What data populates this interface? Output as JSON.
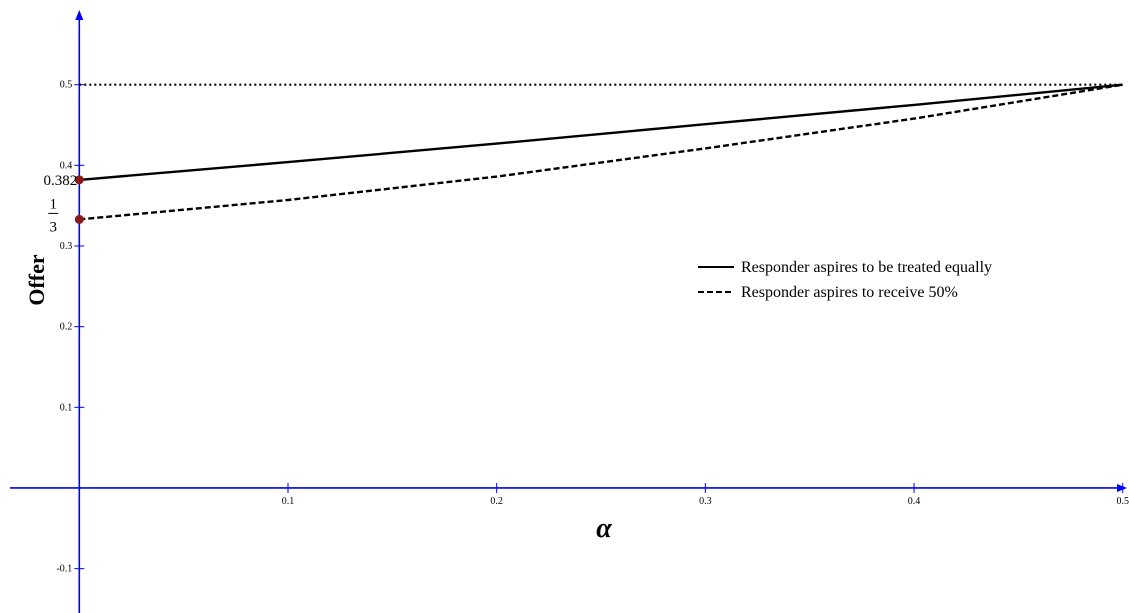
{
  "chart_data": {
    "type": "line",
    "xlabel": "α",
    "ylabel": "Offer",
    "xlim": [
      -0.038,
      0.503
    ],
    "ylim": [
      -0.155,
      0.605
    ],
    "x_ticks": [
      0.1,
      0.2,
      0.3,
      0.4,
      0.5
    ],
    "x_tick_labels": [
      "0.1",
      "0.2",
      "0.3",
      "0.4",
      "0.5"
    ],
    "y_ticks": [
      -0.1,
      0.1,
      0.2,
      0.3,
      0.4,
      0.5
    ],
    "y_tick_labels": [
      "-0.1",
      "0.1",
      "0.2",
      "0.3",
      "0.4",
      "0.5"
    ],
    "grid": false,
    "legend_position": "right",
    "series": [
      {
        "name": "Responder aspires to be treated equally",
        "style": "solid",
        "color": "#000000",
        "x": [
          0,
          0.1,
          0.2,
          0.3,
          0.4,
          0.5
        ],
        "y": [
          0.382,
          0.404,
          0.427,
          0.451,
          0.475,
          0.5
        ]
      },
      {
        "name": "Responder aspires to receive 50%",
        "style": "dashed",
        "color": "#000000",
        "x": [
          0,
          0.1,
          0.2,
          0.3,
          0.4,
          0.5
        ],
        "y": [
          0.333,
          0.357,
          0.386,
          0.421,
          0.458,
          0.5
        ]
      },
      {
        "name": "",
        "style": "dotted",
        "color": "#000000",
        "x": [
          0,
          0.5
        ],
        "y": [
          0.5,
          0.5
        ]
      }
    ],
    "points": [
      {
        "x": 0,
        "y": 0.382,
        "label": "0.382",
        "color": "#8b1a1a"
      },
      {
        "x": 0,
        "y": 0.333,
        "label_num": "1",
        "label_den": "3",
        "color": "#8b1a1a"
      }
    ],
    "axis_color": "#0000ff"
  }
}
